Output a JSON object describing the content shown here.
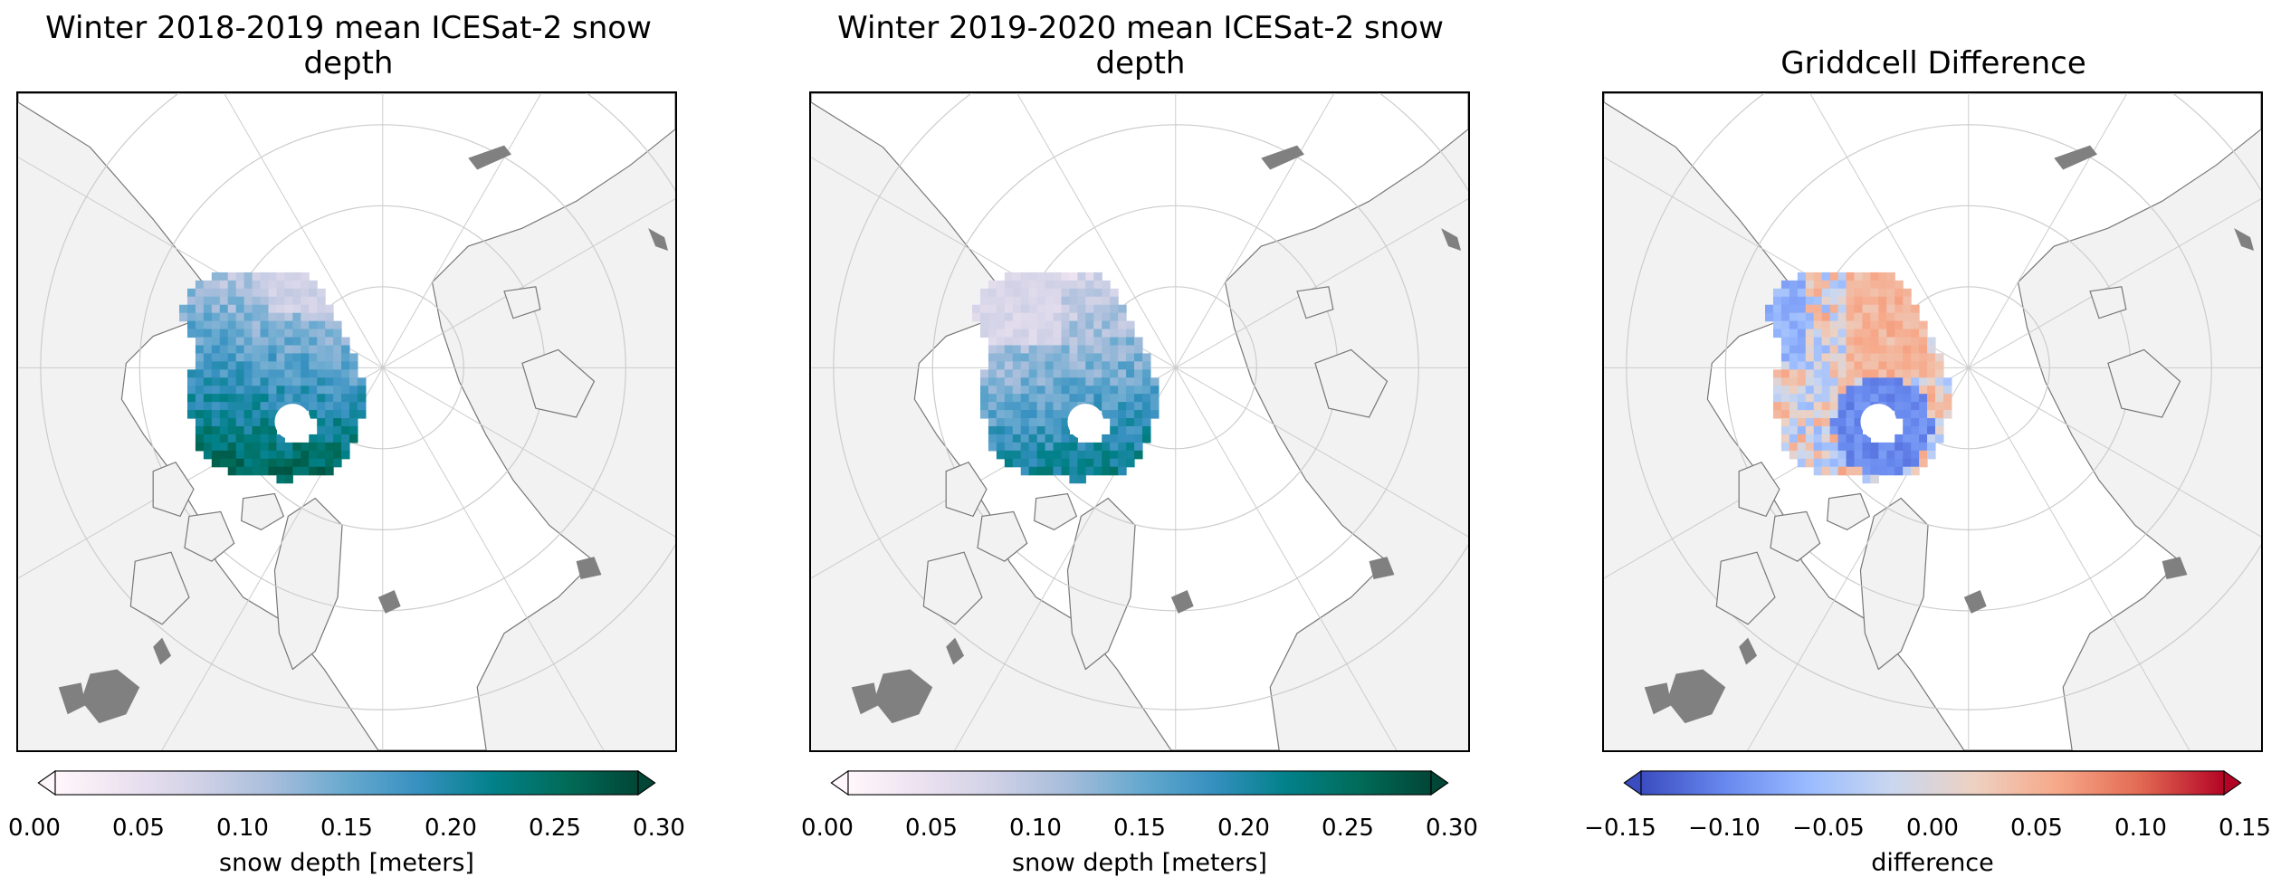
{
  "panels": [
    {
      "title_line1": "Winter 2018-2019 mean ICESat-2 snow",
      "title_line2": "depth",
      "colormap": "PuBuGn",
      "cbar_label": "snow depth [meters]",
      "ticks": [
        "0.00",
        "0.05",
        "0.10",
        "0.15",
        "0.20",
        "0.25",
        "0.30"
      ],
      "vmin": 0.0,
      "vmax": 0.3,
      "extend": "both",
      "pattern": "deep-atlantic"
    },
    {
      "title_line1": "Winter 2019-2020 mean ICESat-2 snow",
      "title_line2": "depth",
      "colormap": "PuBuGn",
      "cbar_label": "snow depth [meters]",
      "ticks": [
        "0.00",
        "0.05",
        "0.10",
        "0.15",
        "0.20",
        "0.25",
        "0.30"
      ],
      "vmin": 0.0,
      "vmax": 0.3,
      "extend": "both",
      "pattern": "shallow"
    },
    {
      "title_line1": "Griddcell Difference",
      "title_line2": "",
      "colormap": "coolwarm",
      "cbar_label": "difference",
      "ticks": [
        "−0.15",
        "−0.10",
        "−0.05",
        "0.00",
        "0.05",
        "0.10",
        "0.15"
      ],
      "vmin": -0.15,
      "vmax": 0.15,
      "extend": "both",
      "pattern": "difference"
    }
  ],
  "map_style": {
    "land_color": "#f2f2f2",
    "ocean_color": "#ffffff",
    "lake_color": "#808080",
    "gridline_color": "#cccccc",
    "coast_color": "#777777"
  },
  "projection": "North Polar Stereographic"
}
